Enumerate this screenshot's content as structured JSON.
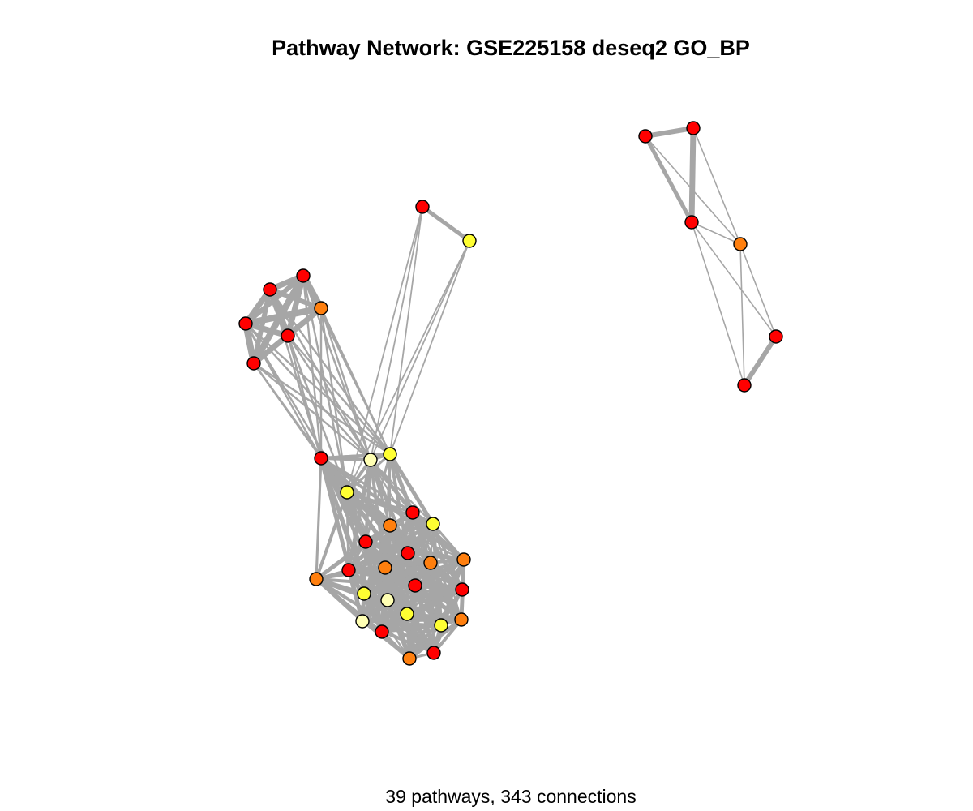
{
  "title": "Pathway Network: GSE225158 deseq2 GO_BP",
  "caption": "39 pathways, 343 connections",
  "colors": {
    "edge": "#a6a6a6",
    "red": "#ff0000",
    "orange": "#ff7f0e",
    "yellow": "#ffff33",
    "cream": "#ffffb3"
  }
}
